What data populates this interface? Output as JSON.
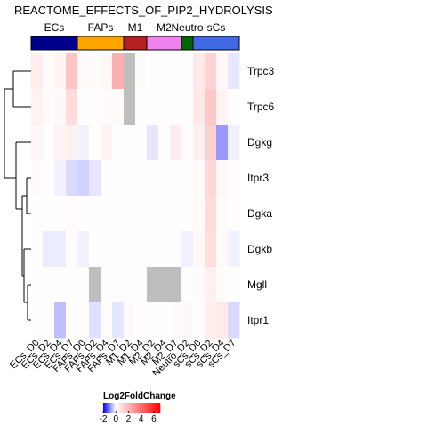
{
  "chart_data": {
    "type": "heatmap",
    "title": "REACTOME_EFFECTS_OF_PIP2_HYDROLYSIS",
    "groups": [
      {
        "name": "ECs",
        "color": "#00008B",
        "columns": [
          "ECs_D0",
          "ECs_D2",
          "ECs_D4",
          "ECs_D7"
        ]
      },
      {
        "name": "FAPs",
        "color": "#FFA500",
        "columns": [
          "FAPs_D0",
          "FAPs_D2",
          "FAPs_D4",
          "FAPs_D7"
        ]
      },
      {
        "name": "M1",
        "color": "#B22222",
        "columns": [
          "M1_D2",
          "M1_D4"
        ]
      },
      {
        "name": "M2",
        "color": "#EE82EE",
        "columns": [
          "M2_D2",
          "M2_D4",
          "M2_D7"
        ]
      },
      {
        "name": "Neutro",
        "color": "#006400",
        "columns": [
          "Neutro_D2"
        ]
      },
      {
        "name": "sCs",
        "color": "#4169E1",
        "columns": [
          "sCs_D0",
          "sCs_D2",
          "sCs_D4",
          "sCs_D7"
        ]
      }
    ],
    "columns": [
      "ECs_D0",
      "ECs_D2",
      "ECs_D4",
      "ECs_D7",
      "FAPs_D0",
      "FAPs_D2",
      "FAPs_D4",
      "FAPs_D7",
      "M1_D2",
      "M1_D4",
      "M2_D2",
      "M2_D4",
      "M2_D7",
      "Neutro_D2",
      "sCs_D0",
      "sCs_D2",
      "sCs_D4",
      "sCs_D7"
    ],
    "rows": [
      "Trpc3",
      "Trpc6",
      "Dgkg",
      "Itpr3",
      "Dgka",
      "Dgkb",
      "Mgll",
      "Itpr1"
    ],
    "values": [
      [
        0.5,
        0.15,
        0.3,
        1.6,
        0.15,
        0.1,
        0.25,
        2.2,
        null,
        0.1,
        0.05,
        0.05,
        0.05,
        0.05,
        0.6,
        1.2,
        0.2,
        -0.2
      ],
      [
        0.35,
        0.1,
        0.2,
        1.0,
        0.05,
        0.05,
        0.1,
        0.15,
        null,
        0.05,
        0.05,
        0.05,
        0.05,
        0.05,
        0.6,
        1.5,
        0.3,
        0.05
      ],
      [
        0.25,
        0.05,
        0.35,
        0.4,
        -0.1,
        0.05,
        0.35,
        0.05,
        0.05,
        0.05,
        -0.2,
        0.05,
        0.5,
        0.05,
        0.4,
        1.3,
        -0.8,
        -0.1
      ],
      [
        0.1,
        0.05,
        -0.1,
        -0.3,
        -0.35,
        -0.2,
        0.05,
        0.05,
        0.05,
        0.05,
        0.05,
        0.05,
        0.05,
        0.05,
        0.15,
        1.1,
        0.2,
        0.05
      ],
      [
        0.05,
        0.05,
        0.05,
        0.1,
        0.05,
        0.05,
        0.05,
        0.05,
        0.05,
        0.05,
        0.05,
        0.05,
        0.05,
        0.05,
        0.15,
        1.0,
        0.15,
        0.05
      ],
      [
        0.05,
        -0.15,
        -0.15,
        0.1,
        -0.1,
        0.05,
        0.05,
        0.05,
        0.05,
        0.05,
        0.05,
        0.05,
        0.05,
        -0.1,
        0.2,
        0.9,
        0.15,
        -0.1
      ],
      [
        0.05,
        0.05,
        0.05,
        0.05,
        0.05,
        null,
        0.05,
        0.05,
        0.05,
        0.05,
        null,
        null,
        null,
        0.05,
        0.1,
        0.4,
        0.1,
        0.05
      ],
      [
        0.05,
        0.05,
        -0.5,
        0.05,
        0.05,
        -0.25,
        0.05,
        -0.2,
        0.1,
        0.05,
        0.05,
        0.05,
        0.15,
        0.2,
        0.05,
        0.5,
        0.6,
        -0.3
      ]
    ],
    "na_color": "#BEBEBE",
    "legend": {
      "title": "Log2FoldChange",
      "ticks": [
        -2,
        0,
        2,
        4,
        6
      ],
      "min": -2,
      "max": 7,
      "colors": {
        "low": "#0000FF",
        "mid": "#FFFFFF",
        "high": "#FF0000"
      },
      "placement": "bottom-center"
    },
    "row_dendrogram": true
  }
}
